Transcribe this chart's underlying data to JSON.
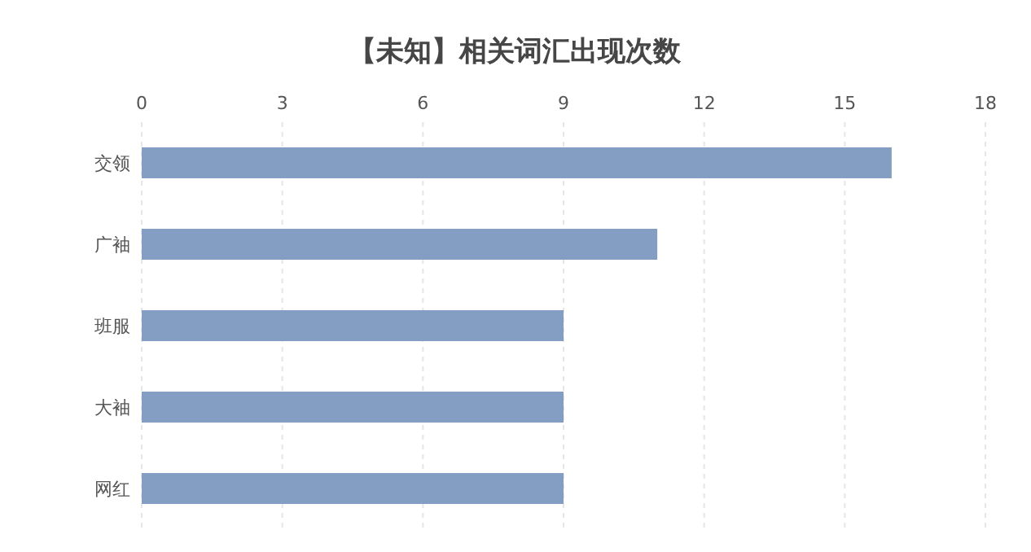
{
  "chart_data": {
    "type": "bar",
    "orientation": "horizontal",
    "title": "【未知】相关词汇出现次数",
    "categories": [
      "交领",
      "广袖",
      "班服",
      "大袖",
      "网红"
    ],
    "values": [
      16,
      11,
      9,
      9,
      9
    ],
    "color": "#849dc2",
    "xlim": [
      0,
      18
    ],
    "xticks": [
      0,
      3,
      6,
      9,
      12,
      15,
      18
    ],
    "grid": "x"
  }
}
